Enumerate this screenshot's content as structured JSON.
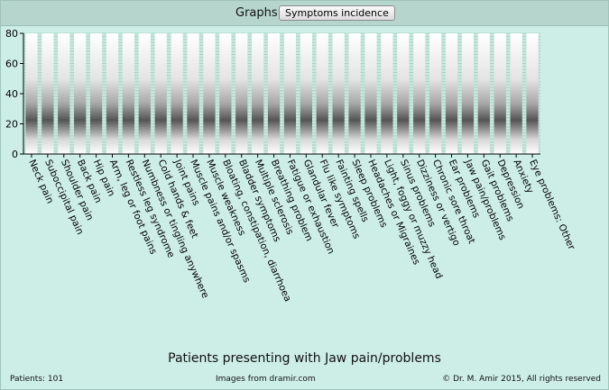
{
  "toolbar": {
    "graphs_label": "Graphs:",
    "select_value": "Symptoms incidence"
  },
  "chart_data": {
    "type": "bar",
    "title": "Patients presenting with Jaw pain/problems",
    "ylim": [
      0,
      80
    ],
    "yticks": [
      0,
      20,
      40,
      60,
      80
    ],
    "grid": true,
    "categories": [
      "Neck pain",
      "Suboccipital pain",
      "Shoulder pain",
      "Back pain",
      "Hip pain",
      "Arm, leg or foot pains",
      "Restless leg syndrome",
      "Numbness or tingling anywhere",
      "Cold hands & feet",
      "Joint pains",
      "Muscle pains and/or spasms",
      "Muscle weakness",
      "Bloating, constipation, diarrhoea",
      "Bladder symptoms",
      "Multiple sclerosis",
      "Breathing problem",
      "Fatigue or exhaustion",
      "Glandular fever",
      "Flu like symptoms",
      "Fainting spells",
      "Sleep problems",
      "Headaches or Migraines",
      "Light, foggy or muzzy head",
      "Sinus problems",
      "Dizziness or vertigo",
      "Chronic sore throat",
      "Ear problems",
      "Jaw pain/problems",
      "Gait problems",
      "Depression",
      "Anxiety",
      "Eye problems: Other"
    ],
    "values": [
      80,
      80,
      80,
      80,
      80,
      80,
      80,
      80,
      80,
      80,
      80,
      80,
      80,
      80,
      80,
      80,
      80,
      80,
      80,
      80,
      80,
      80,
      80,
      80,
      80,
      80,
      80,
      80,
      80,
      80,
      80,
      80
    ]
  },
  "footer": {
    "patients": "Patients: 101",
    "images": "Images from dramir.com",
    "copyright": "© Dr. M. Amir 2015, All rights reserved"
  }
}
